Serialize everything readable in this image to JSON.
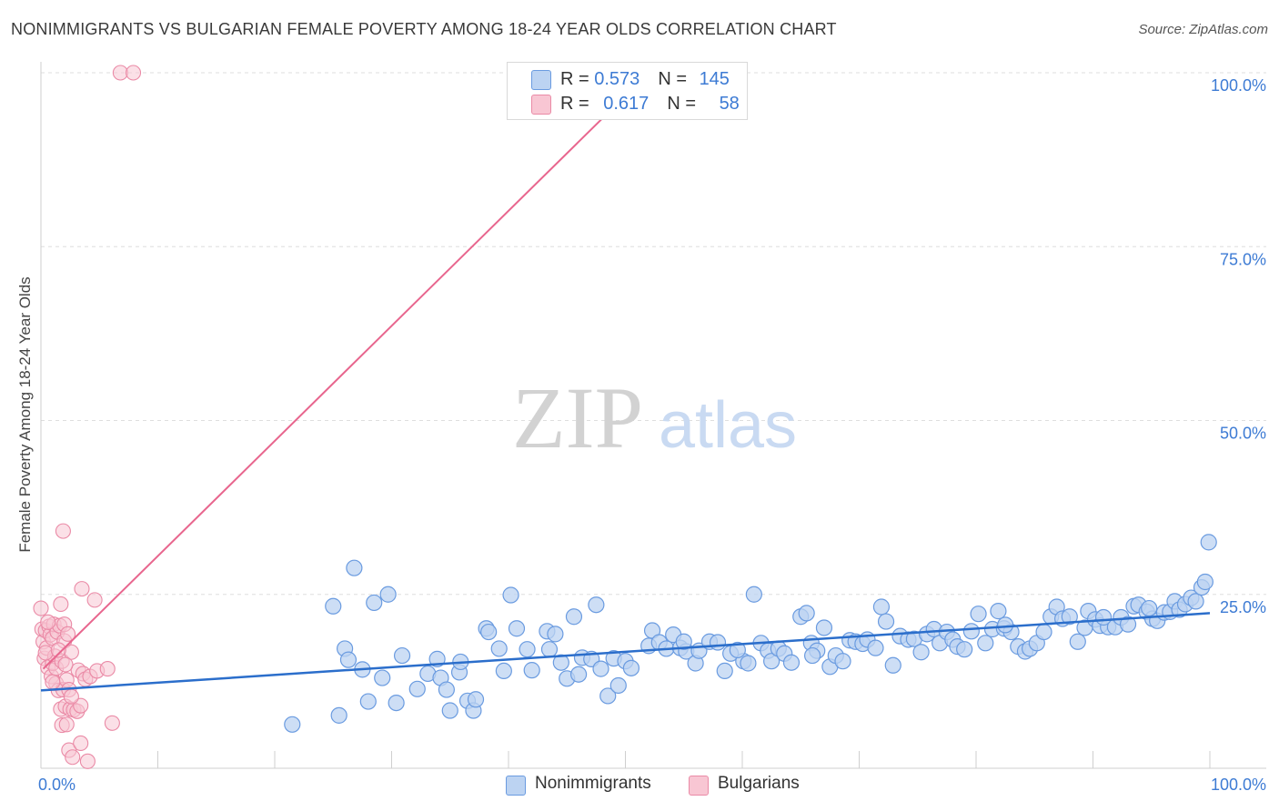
{
  "title": "NONIMMIGRANTS VS BULGARIAN FEMALE POVERTY AMONG 18-24 YEAR OLDS CORRELATION CHART",
  "source": "Source: ZipAtlas.com",
  "watermark": {
    "zip": "ZIP",
    "atlas": "atlas"
  },
  "colors": {
    "nonimmigrants_fill": "#bcd3f2",
    "nonimmigrants_stroke": "#6a9be0",
    "nonimmigrants_line": "#2b6ecb",
    "bulgarians_fill": "#f8c6d3",
    "bulgarians_stroke": "#ea8aa6",
    "bulgarians_line": "#e8668e",
    "tick_label": "#3d7bd4"
  },
  "legend_top": {
    "rows": [
      {
        "r_label": "R = ",
        "r_value": "0.573",
        "n_label": "N = ",
        "n_value": "145"
      },
      {
        "r_label": "R = ",
        "r_value": "0.617",
        "n_label": "N = ",
        "n_value": "58"
      }
    ]
  },
  "legend_bottom": {
    "items": [
      "Nonimmigrants",
      "Bulgarians"
    ]
  },
  "chart_data": {
    "type": "scatter",
    "title": "NONIMMIGRANTS VS BULGARIAN FEMALE POVERTY AMONG 18-24 YEAR OLDS CORRELATION CHART",
    "xlabel": "",
    "ylabel": "Female Poverty Among 18-24 Year Olds",
    "xlim": [
      0,
      100
    ],
    "ylim": [
      0,
      100
    ],
    "x_tick_labels": [
      "0.0%",
      "100.0%"
    ],
    "y_ticks": [
      25,
      50,
      75,
      100
    ],
    "y_tick_labels": [
      "25.0%",
      "50.0%",
      "75.0%",
      "100.0%"
    ],
    "grid": true,
    "legend": "top-center",
    "series": [
      {
        "name": "Nonimmigrants",
        "R": 0.573,
        "N": 145,
        "trend": {
          "x": [
            0,
            100
          ],
          "y": [
            11.2,
            22.3
          ]
        },
        "points": [
          [
            21.5,
            6.3
          ],
          [
            25.0,
            23.3
          ],
          [
            25.5,
            7.6
          ],
          [
            26.0,
            17.2
          ],
          [
            26.3,
            15.6
          ],
          [
            26.8,
            28.8
          ],
          [
            27.5,
            14.2
          ],
          [
            28.0,
            9.6
          ],
          [
            28.5,
            23.8
          ],
          [
            29.2,
            13.0
          ],
          [
            29.7,
            25.0
          ],
          [
            30.4,
            9.4
          ],
          [
            30.9,
            16.2
          ],
          [
            32.2,
            11.4
          ],
          [
            33.1,
            13.6
          ],
          [
            33.9,
            15.7
          ],
          [
            34.2,
            13.0
          ],
          [
            34.7,
            11.3
          ],
          [
            35.0,
            8.3
          ],
          [
            35.8,
            13.8
          ],
          [
            35.9,
            15.3
          ],
          [
            36.5,
            9.7
          ],
          [
            37.0,
            8.3
          ],
          [
            38.1,
            20.1
          ],
          [
            38.3,
            19.6
          ],
          [
            39.2,
            17.2
          ],
          [
            39.6,
            14.0
          ],
          [
            40.2,
            24.9
          ],
          [
            40.7,
            20.1
          ],
          [
            41.6,
            17.1
          ],
          [
            42.0,
            14.1
          ],
          [
            43.3,
            19.7
          ],
          [
            43.5,
            17.1
          ],
          [
            44.0,
            19.3
          ],
          [
            44.5,
            15.2
          ],
          [
            45.0,
            12.9
          ],
          [
            45.6,
            21.8
          ],
          [
            46.0,
            13.5
          ],
          [
            46.3,
            15.9
          ],
          [
            47.1,
            15.7
          ],
          [
            47.5,
            23.5
          ],
          [
            47.9,
            14.3
          ],
          [
            48.5,
            10.4
          ],
          [
            49.0,
            15.8
          ],
          [
            49.4,
            11.9
          ],
          [
            50.0,
            15.4
          ],
          [
            50.5,
            14.4
          ],
          [
            52.0,
            17.6
          ],
          [
            52.3,
            19.8
          ],
          [
            52.9,
            18.1
          ],
          [
            53.5,
            17.2
          ],
          [
            54.1,
            19.2
          ],
          [
            54.7,
            17.3
          ],
          [
            55.2,
            16.8
          ],
          [
            56.0,
            15.1
          ],
          [
            56.3,
            16.9
          ],
          [
            57.2,
            18.2
          ],
          [
            57.9,
            18.1
          ],
          [
            58.5,
            14.0
          ],
          [
            59.0,
            16.5
          ],
          [
            60.1,
            15.4
          ],
          [
            60.5,
            15.1
          ],
          [
            61.0,
            25.0
          ],
          [
            61.6,
            18.0
          ],
          [
            62.2,
            16.9
          ],
          [
            62.5,
            15.4
          ],
          [
            63.1,
            17.2
          ],
          [
            63.6,
            16.5
          ],
          [
            64.2,
            15.2
          ],
          [
            65.0,
            21.8
          ],
          [
            65.5,
            22.3
          ],
          [
            65.9,
            18.0
          ],
          [
            66.4,
            16.9
          ],
          [
            67.0,
            20.2
          ],
          [
            67.5,
            14.6
          ],
          [
            68.0,
            16.2
          ],
          [
            68.6,
            15.4
          ],
          [
            69.2,
            18.4
          ],
          [
            69.7,
            18.2
          ],
          [
            70.3,
            17.9
          ],
          [
            70.7,
            18.5
          ],
          [
            71.4,
            17.3
          ],
          [
            71.9,
            23.2
          ],
          [
            72.3,
            21.1
          ],
          [
            72.9,
            14.8
          ],
          [
            73.5,
            19.0
          ],
          [
            74.2,
            18.5
          ],
          [
            74.7,
            18.6
          ],
          [
            75.3,
            16.7
          ],
          [
            75.8,
            19.3
          ],
          [
            76.4,
            20.0
          ],
          [
            76.9,
            18.0
          ],
          [
            77.5,
            19.6
          ],
          [
            78.0,
            18.5
          ],
          [
            78.4,
            17.5
          ],
          [
            79.0,
            17.1
          ],
          [
            79.6,
            19.7
          ],
          [
            80.2,
            22.2
          ],
          [
            80.8,
            18.0
          ],
          [
            81.4,
            20.0
          ],
          [
            81.9,
            22.6
          ],
          [
            82.4,
            20.1
          ],
          [
            83.0,
            19.6
          ],
          [
            83.6,
            17.5
          ],
          [
            84.2,
            16.8
          ],
          [
            84.6,
            17.2
          ],
          [
            85.2,
            18.0
          ],
          [
            85.8,
            19.6
          ],
          [
            86.4,
            21.8
          ],
          [
            86.9,
            23.2
          ],
          [
            87.4,
            21.5
          ],
          [
            88.0,
            21.8
          ],
          [
            88.7,
            18.2
          ],
          [
            89.3,
            20.2
          ],
          [
            89.6,
            22.6
          ],
          [
            90.2,
            21.4
          ],
          [
            90.6,
            20.5
          ],
          [
            91.3,
            20.3
          ],
          [
            91.9,
            20.3
          ],
          [
            92.4,
            21.7
          ],
          [
            93.0,
            20.7
          ],
          [
            93.5,
            23.3
          ],
          [
            93.9,
            23.5
          ],
          [
            94.6,
            22.5
          ],
          [
            95.1,
            21.5
          ],
          [
            95.5,
            21.2
          ],
          [
            96.1,
            22.4
          ],
          [
            96.6,
            22.5
          ],
          [
            97.0,
            24.0
          ],
          [
            97.4,
            22.8
          ],
          [
            97.9,
            23.6
          ],
          [
            98.4,
            24.5
          ],
          [
            98.8,
            24.0
          ],
          [
            99.3,
            26.0
          ],
          [
            99.6,
            26.8
          ],
          [
            99.9,
            32.5
          ],
          [
            55.0,
            18.2
          ],
          [
            59.6,
            17.0
          ],
          [
            66.0,
            16.2
          ],
          [
            82.5,
            20.6
          ],
          [
            90.9,
            21.7
          ],
          [
            94.8,
            23.0
          ],
          [
            37.2,
            9.9
          ]
        ]
      },
      {
        "name": "Bulgarians",
        "R": 0.617,
        "N": 58,
        "trend": {
          "x": [
            0.2,
            52
          ],
          "y": [
            14.3,
            100
          ]
        },
        "points": [
          [
            0.0,
            23.0
          ],
          [
            0.1,
            20.0
          ],
          [
            0.2,
            18.2
          ],
          [
            0.3,
            15.8
          ],
          [
            0.4,
            19.8
          ],
          [
            0.5,
            17.3
          ],
          [
            0.6,
            14.5
          ],
          [
            0.7,
            20.4
          ],
          [
            0.8,
            19.2
          ],
          [
            0.9,
            13.2
          ],
          [
            1.0,
            18.7
          ],
          [
            1.0,
            15.1
          ],
          [
            1.1,
            20.7
          ],
          [
            1.2,
            16.1
          ],
          [
            1.3,
            12.2
          ],
          [
            1.3,
            14.4
          ],
          [
            1.4,
            19.6
          ],
          [
            1.5,
            11.2
          ],
          [
            1.6,
            20.5
          ],
          [
            1.7,
            8.5
          ],
          [
            1.7,
            23.6
          ],
          [
            1.8,
            6.2
          ],
          [
            1.8,
            15.4
          ],
          [
            1.9,
            11.3
          ],
          [
            1.9,
            34.1
          ],
          [
            2.0,
            18.3
          ],
          [
            2.0,
            20.7
          ],
          [
            2.1,
            8.9
          ],
          [
            2.2,
            12.7
          ],
          [
            2.2,
            6.3
          ],
          [
            2.3,
            19.3
          ],
          [
            2.4,
            2.6
          ],
          [
            2.4,
            11.3
          ],
          [
            2.5,
            8.5
          ],
          [
            2.6,
            16.7
          ],
          [
            2.7,
            1.6
          ],
          [
            2.8,
            8.4
          ],
          [
            3.1,
            8.2
          ],
          [
            3.2,
            14.1
          ],
          [
            3.4,
            3.6
          ],
          [
            3.4,
            9.0
          ],
          [
            3.5,
            25.8
          ],
          [
            3.6,
            13.6
          ],
          [
            3.8,
            12.8
          ],
          [
            4.0,
            1.0
          ],
          [
            4.2,
            13.2
          ],
          [
            4.6,
            24.2
          ],
          [
            4.8,
            14.0
          ],
          [
            5.7,
            14.3
          ],
          [
            6.1,
            6.5
          ],
          [
            6.8,
            100.0
          ],
          [
            7.9,
            100.0
          ],
          [
            0.4,
            16.6
          ],
          [
            0.6,
            21.0
          ],
          [
            1.0,
            12.4
          ],
          [
            1.5,
            17.0
          ],
          [
            2.1,
            14.9
          ],
          [
            2.6,
            10.3
          ]
        ]
      }
    ]
  }
}
